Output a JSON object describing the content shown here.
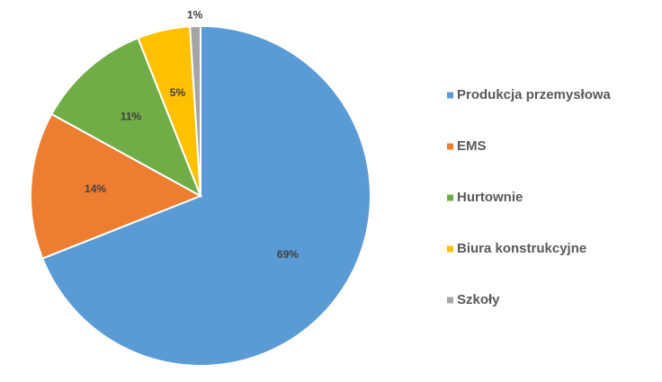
{
  "chart_data": {
    "type": "pie",
    "categories": [
      "Produkcja przemysłowa",
      "EMS",
      "Hurtownie",
      "Biura konstrukcyjne",
      "Szkoły"
    ],
    "values": [
      69,
      14,
      11,
      5,
      1
    ],
    "value_labels": [
      "69%",
      "14%",
      "11%",
      "5%",
      "1%"
    ],
    "colors": [
      "#5b9bd5",
      "#ed7d31",
      "#70ad47",
      "#ffc000",
      "#a5a5a5"
    ],
    "legend": "right"
  }
}
